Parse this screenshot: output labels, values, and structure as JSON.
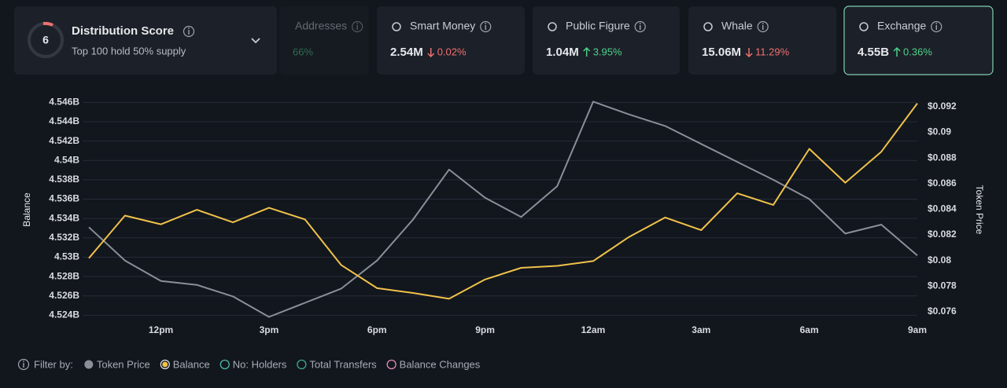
{
  "distribution": {
    "score": "6",
    "title": "Distribution Score",
    "subtitle": "Top 100 hold 50% supply"
  },
  "cards": [
    {
      "label": "Addresses",
      "value": "",
      "change": "66%",
      "direction": "up"
    },
    {
      "label": "Smart Money",
      "value": "2.54M",
      "change": "0.02%",
      "direction": "down"
    },
    {
      "label": "Public Figure",
      "value": "1.04M",
      "change": "3.95%",
      "direction": "up"
    },
    {
      "label": "Whale",
      "value": "15.06M",
      "change": "11.29%",
      "direction": "down"
    },
    {
      "label": "Exchange",
      "value": "4.55B",
      "change": "0.36%",
      "direction": "up"
    }
  ],
  "chart_data": {
    "type": "line",
    "categories": [
      null,
      null,
      "12pm",
      null,
      null,
      "3pm",
      null,
      null,
      "6pm",
      null,
      null,
      "9pm",
      null,
      null,
      "12am",
      null,
      null,
      "3am",
      null,
      null,
      "6am",
      null,
      null,
      "9am"
    ],
    "series": [
      {
        "name": "Token Price",
        "color": "#8a8f98",
        "axis": "y2",
        "values": [
          0.0826,
          0.08,
          0.0784,
          0.0781,
          0.0772,
          0.0756,
          0.0767,
          0.0778,
          0.08,
          0.0832,
          0.0871,
          0.0849,
          0.0834,
          0.0858,
          0.0924,
          0.0914,
          0.0905,
          0.0891,
          0.0877,
          0.0863,
          0.0848,
          0.0821,
          0.0828,
          0.0804
        ]
      },
      {
        "name": "Balance",
        "color": "#f0c24a",
        "values": [
          4.5299,
          4.5343,
          4.5334,
          4.5349,
          4.5336,
          4.5351,
          4.5339,
          4.5292,
          4.5268,
          4.5263,
          4.5257,
          4.5277,
          4.5289,
          4.5291,
          4.5296,
          4.5321,
          4.5341,
          4.5328,
          4.5366,
          4.5354,
          4.5412,
          4.5377,
          4.5409,
          4.5459
        ]
      }
    ],
    "y_label": "Balance",
    "y2_label": "Token Price",
    "ylim": [
      4.5233,
      4.547
    ],
    "yticks": [
      {
        "value": 4.524,
        "label": "4.524B"
      },
      {
        "value": 4.526,
        "label": "4.526B"
      },
      {
        "value": 4.528,
        "label": "4.528B"
      },
      {
        "value": 4.53,
        "label": "4.53B"
      },
      {
        "value": 4.532,
        "label": "4.532B"
      },
      {
        "value": 4.534,
        "label": "4.534B"
      },
      {
        "value": 4.536,
        "label": "4.536B"
      },
      {
        "value": 4.538,
        "label": "4.538B"
      },
      {
        "value": 4.54,
        "label": "4.54B"
      },
      {
        "value": 4.542,
        "label": "4.542B"
      },
      {
        "value": 4.544,
        "label": "4.544B"
      },
      {
        "value": 4.546,
        "label": "4.546B"
      }
    ],
    "y2lim": [
      0.0752,
      0.0931
    ],
    "y2ticks": [
      {
        "value": 0.076,
        "label": "$0.076"
      },
      {
        "value": 0.078,
        "label": "$0.078"
      },
      {
        "value": 0.08,
        "label": "$0.08"
      },
      {
        "value": 0.082,
        "label": "$0.082"
      },
      {
        "value": 0.084,
        "label": "$0.084"
      },
      {
        "value": 0.086,
        "label": "$0.086"
      },
      {
        "value": 0.088,
        "label": "$0.088"
      },
      {
        "value": 0.09,
        "label": "$0.09"
      },
      {
        "value": 0.092,
        "label": "$0.092"
      }
    ],
    "grid": true
  },
  "filter_bar": {
    "label": "Filter by:",
    "other_items": [
      {
        "name": "No: Holders",
        "color": "#4fb8a8"
      },
      {
        "name": "Total Transfers",
        "color": "#3fa88a"
      },
      {
        "name": "Balance Changes",
        "color": "#e08ab8"
      }
    ]
  }
}
